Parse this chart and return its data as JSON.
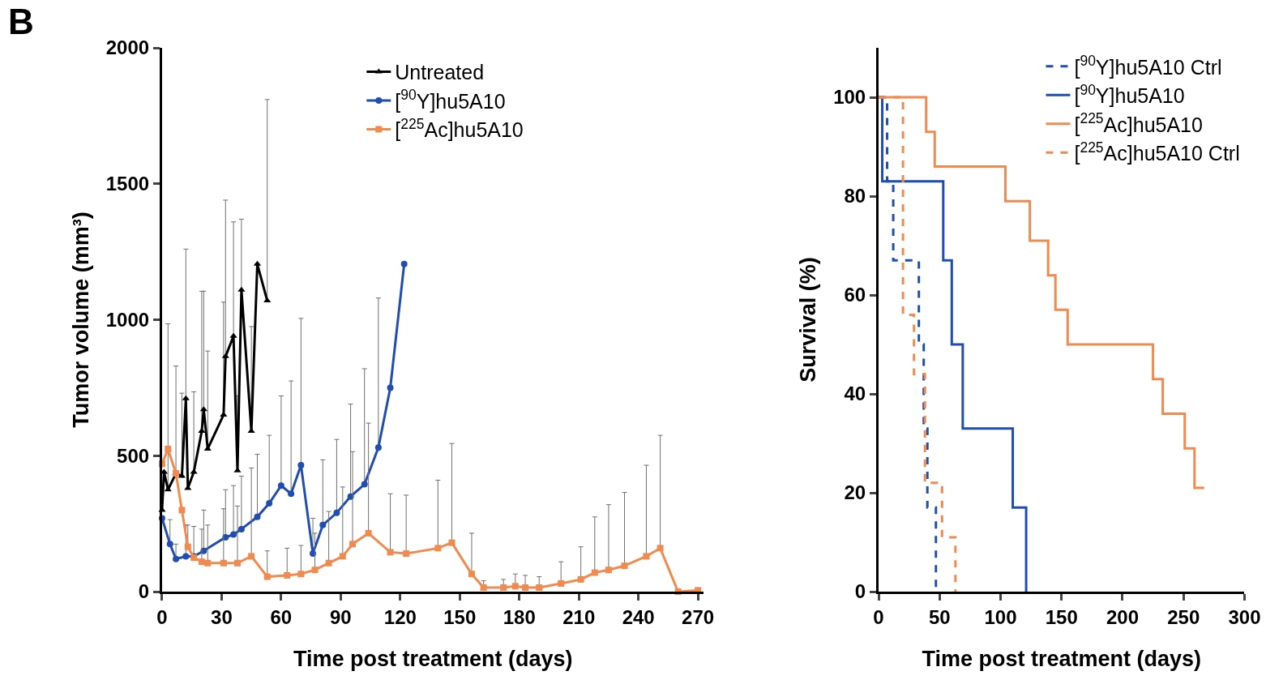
{
  "chart_data": [
    {
      "type": "line",
      "annotations": [
        "B"
      ],
      "xlabel": "Time post treatment (days)",
      "ylabel": "Tumor volume (mm³)",
      "xlim": [
        0,
        273
      ],
      "xticks": [
        0,
        30,
        60,
        90,
        120,
        150,
        180,
        210,
        240,
        270
      ],
      "ylim": [
        0,
        2000
      ],
      "yticks": [
        0,
        500,
        1000,
        1500,
        2000
      ],
      "legend": "top",
      "series": [
        {
          "name": "Untreated",
          "color": "#000000",
          "marker": "triangle",
          "x": [
            0,
            1,
            3,
            7,
            10,
            12,
            13,
            16,
            20,
            21,
            23,
            31,
            32,
            36,
            38,
            40,
            45,
            48,
            53
          ],
          "values": [
            300,
            440,
            375,
            435,
            425,
            710,
            380,
            440,
            590,
            670,
            525,
            650,
            865,
            940,
            445,
            1110,
            590,
            1205,
            1070
          ],
          "errors": [
            null,
            null,
            [
              375,
              985
            ],
            [
              435,
              830
            ],
            [
              425,
              730
            ],
            [
              710,
              1260
            ],
            null,
            [
              440,
              735
            ],
            [
              590,
              1105
            ],
            [
              670,
              1105
            ],
            [
              525,
              885
            ],
            [
              650,
              1065
            ],
            [
              865,
              1440
            ],
            [
              940,
              1360
            ],
            [
              445,
              720
            ],
            [
              1110,
              1370
            ],
            [
              590,
              975
            ],
            null,
            [
              1070,
              1810
            ]
          ]
        },
        {
          "name": "[$^{90}$Y]hu5A10",
          "color": "#1f4db0",
          "marker": "circle",
          "x": [
            0,
            4,
            7,
            12,
            16,
            21,
            32,
            36,
            40,
            48,
            54,
            60,
            65,
            70,
            76,
            81,
            88,
            95,
            102,
            109,
            115,
            122
          ],
          "values": [
            270,
            175,
            120,
            130,
            130,
            150,
            200,
            210,
            230,
            275,
            325,
            390,
            360,
            465,
            140,
            245,
            290,
            350,
            395,
            530,
            750,
            1205
          ],
          "errors": [
            null,
            [
              175,
              265
            ],
            [
              120,
              175
            ],
            [
              130,
              245
            ],
            null,
            [
              150,
              300
            ],
            [
              200,
              375
            ],
            [
              210,
              390
            ],
            [
              230,
              425
            ],
            [
              275,
              505
            ],
            [
              325,
              575
            ],
            [
              390,
              720
            ],
            [
              360,
              775
            ],
            [
              465,
              1005
            ],
            [
              140,
              270
            ],
            [
              245,
              485
            ],
            [
              290,
              560
            ],
            [
              350,
              690
            ],
            [
              395,
              820
            ],
            [
              530,
              1080
            ],
            null,
            null
          ]
        },
        {
          "name": "[$^{225}$Ac]hu5A10",
          "color": "#f08a4f",
          "marker": "square",
          "x": [
            0,
            3,
            7,
            10,
            13,
            16,
            20,
            23,
            31,
            38,
            45,
            53,
            63,
            70,
            77,
            84,
            91,
            96,
            104,
            115,
            123,
            139,
            146,
            156,
            162,
            172,
            178,
            183,
            190,
            201,
            211,
            218,
            225,
            233,
            244,
            251,
            260,
            270
          ],
          "values": [
            470,
            525,
            435,
            300,
            165,
            125,
            110,
            105,
            105,
            105,
            130,
            55,
            60,
            65,
            80,
            105,
            130,
            175,
            215,
            145,
            140,
            160,
            180,
            65,
            15,
            15,
            20,
            15,
            15,
            30,
            45,
            70,
            80,
            95,
            130,
            160,
            0,
            5
          ],
          "errors": [
            null,
            null,
            null,
            null,
            [
              165,
              245
            ],
            [
              125,
              240
            ],
            [
              110,
              230
            ],
            [
              105,
              245
            ],
            [
              105,
              305
            ],
            [
              105,
              315
            ],
            [
              130,
              455
            ],
            [
              55,
              150
            ],
            [
              60,
              160
            ],
            [
              65,
              170
            ],
            [
              80,
              215
            ],
            [
              105,
              295
            ],
            [
              130,
              385
            ],
            [
              175,
              515
            ],
            [
              215,
              620
            ],
            [
              145,
              360
            ],
            [
              140,
              355
            ],
            [
              160,
              410
            ],
            [
              180,
              545
            ],
            [
              65,
              215
            ],
            [
              15,
              40
            ],
            [
              15,
              45
            ],
            [
              20,
              65
            ],
            [
              15,
              60
            ],
            [
              15,
              55
            ],
            [
              30,
              110
            ],
            [
              45,
              165
            ],
            [
              70,
              275
            ],
            [
              80,
              320
            ],
            [
              95,
              365
            ],
            [
              130,
              465
            ],
            [
              160,
              575
            ],
            null,
            null
          ]
        }
      ]
    },
    {
      "type": "step",
      "xlabel": "Time post treatment (days)",
      "ylabel": "Survival (%)",
      "xlim": [
        0,
        300
      ],
      "xticks": [
        0,
        50,
        100,
        150,
        200,
        250,
        300
      ],
      "ylim": [
        0,
        110
      ],
      "yticks": [
        0,
        20,
        40,
        60,
        80,
        100
      ],
      "legend": "top right",
      "series": [
        {
          "name": "[$^{90}$Y]hu5A10 Ctrl",
          "color": "#1f4db0",
          "line_style": "dashed",
          "x": [
            0,
            7,
            12,
            33,
            37,
            40,
            47
          ],
          "values": [
            100,
            83,
            67,
            50,
            33,
            17,
            0
          ]
        },
        {
          "name": "[$^{90}$Y]hu5A10",
          "color": "#1f4db0",
          "line_style": "solid",
          "x": [
            0,
            3,
            53,
            60,
            69,
            110,
            121
          ],
          "values": [
            100,
            83,
            67,
            50,
            33,
            17,
            0
          ]
        },
        {
          "name": "[$^{225}$Ac]hu5A10",
          "color": "#f08a4f",
          "line_style": "solid",
          "x": [
            0,
            39,
            46,
            104,
            124,
            139,
            145,
            155,
            225,
            233,
            251,
            259,
            267
          ],
          "values": [
            100,
            93,
            86,
            79,
            71,
            64,
            57,
            50,
            43,
            36,
            29,
            21,
            21
          ]
        },
        {
          "name": "[$^{225}$Ac]hu5A10 Ctrl",
          "color": "#f08a4f",
          "line_style": "dashed",
          "x": [
            0,
            20,
            29,
            38,
            52,
            63
          ],
          "values": [
            100,
            56,
            44,
            22,
            11,
            0
          ]
        }
      ]
    }
  ]
}
